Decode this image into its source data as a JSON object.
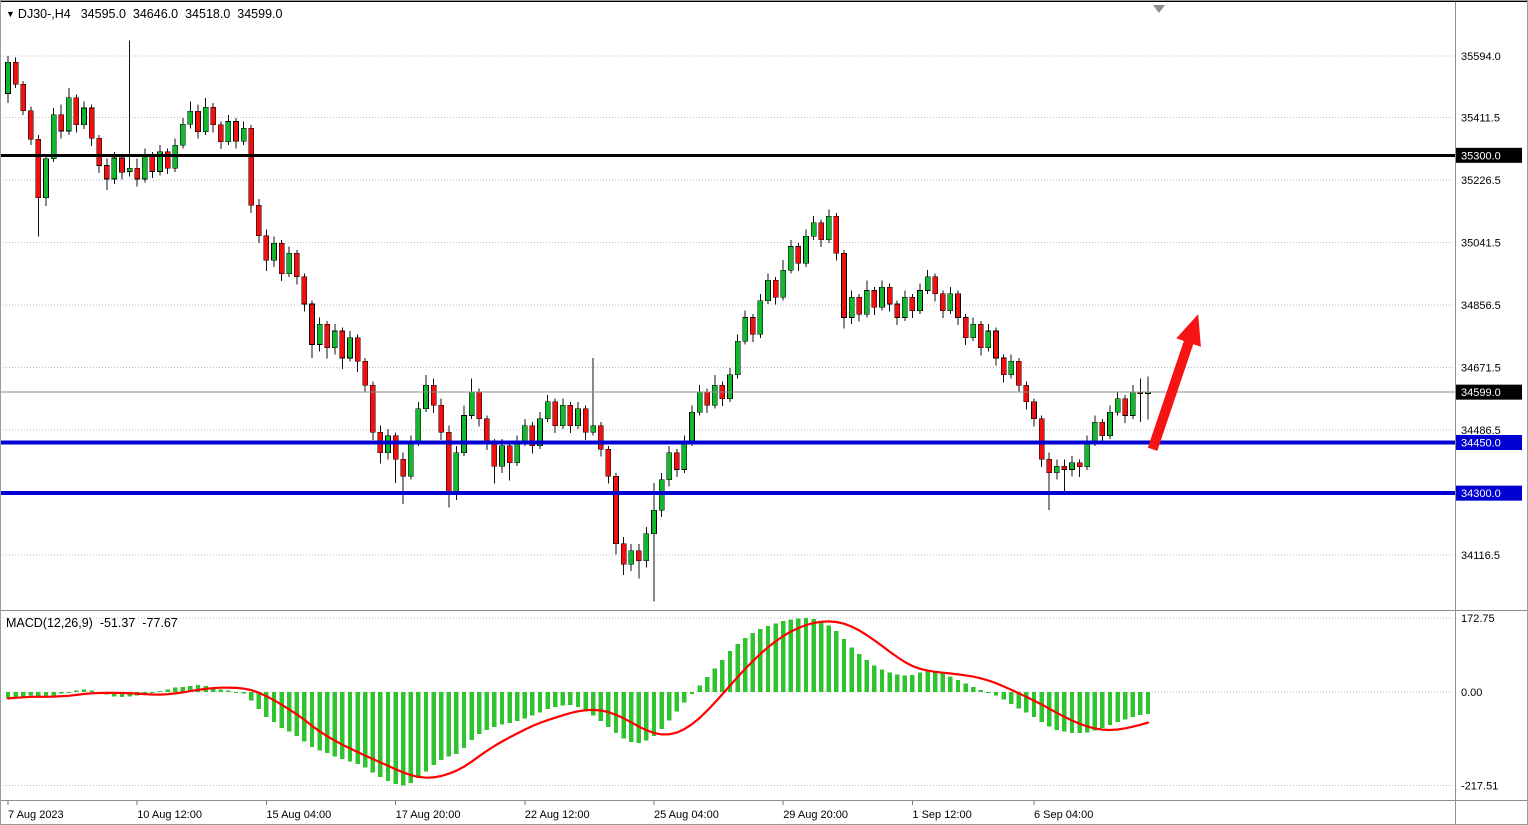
{
  "header": {
    "symbol_period": "DJ30-,H4",
    "open": "34595.0",
    "high": "34646.0",
    "low": "34518.0",
    "close": "34599.0"
  },
  "macd_header": {
    "label": "MACD(12,26,9)",
    "macd_value": "-51.37",
    "signal_value": "-77.67"
  },
  "icons": {
    "dropdown": "▼"
  },
  "colors": {
    "bull": "#11b72f",
    "bear": "#ef1010",
    "wick": "#111111",
    "macd_histogram": "#2fc32f",
    "macd_signal": "#ff0000",
    "support": "#0000d0",
    "resistance": "#000000",
    "current_price_line": "#8a8a8a",
    "grid": "#bdbdbd",
    "badge_text": "#ffffff",
    "arrow": "#f51413",
    "separator": "#8f8f8f"
  },
  "chart_data": {
    "type": "candlestick",
    "symbol": "DJ30-",
    "timeframe": "H4",
    "title": "DJ30-,H4 34595.0 34646.0 34518.0 34599.0",
    "last_ohlc": {
      "open": 34595.0,
      "high": 34646.0,
      "low": 34518.0,
      "close": 34599.0
    },
    "price_axis_ticks": [
      {
        "label": "35594.0",
        "value": 35594.0
      },
      {
        "label": "35411.5",
        "value": 35411.5
      },
      {
        "label": "35226.5",
        "value": 35226.5
      },
      {
        "label": "35041.5",
        "value": 35041.5
      },
      {
        "label": "34856.5",
        "value": 34856.5
      },
      {
        "label": "34671.5",
        "value": 34671.5
      },
      {
        "label": "34486.5",
        "value": 34486.5
      },
      {
        "label": "34116.5",
        "value": 34116.5
      }
    ],
    "time_axis_labels": [
      {
        "label": "7 Aug 2023",
        "index": 0
      },
      {
        "label": "10 Aug 12:00",
        "index": 17
      },
      {
        "label": "15 Aug 04:00",
        "index": 34
      },
      {
        "label": "17 Aug 20:00",
        "index": 51
      },
      {
        "label": "22 Aug 12:00",
        "index": 68
      },
      {
        "label": "25 Aug 04:00",
        "index": 85
      },
      {
        "label": "29 Aug 20:00",
        "index": 102
      },
      {
        "label": "1 Sep 12:00",
        "index": 119
      },
      {
        "label": "6 Sep 04:00",
        "index": 135
      }
    ],
    "macd_axis_ticks": [
      {
        "label": "172.75",
        "value": 172.75
      },
      {
        "label": "0.00",
        "value": 0.0
      },
      {
        "label": "-217.51",
        "value": -217.51
      }
    ],
    "horizontal_lines": [
      {
        "label": "35300.0",
        "price": 35300.0,
        "role": "resistance",
        "thickness": 3
      },
      {
        "label": "34450.0",
        "price": 34450.0,
        "role": "support",
        "thickness": 4
      },
      {
        "label": "34300.0",
        "price": 34300.0,
        "role": "support",
        "thickness": 4
      }
    ],
    "current_price": {
      "label": "34599.0",
      "price": 34599.0
    },
    "arrow_annotation": {
      "from_index": 150.6,
      "from_price": 34430,
      "to_index": 156.6,
      "to_price": 34830
    },
    "macd": {
      "label": "MACD(12,26,9)",
      "macd_value": -51.37,
      "signal_value": -77.67,
      "signal_period": 9,
      "histogram": [
        -15,
        -12,
        -10,
        -8,
        -10,
        -12,
        -8,
        -4,
        0,
        4,
        6,
        4,
        -2,
        -6,
        -10,
        -12,
        -10,
        -8,
        -6,
        -2,
        2,
        6,
        10,
        12,
        14,
        16,
        14,
        10,
        6,
        4,
        0,
        -4,
        -20,
        -40,
        -58,
        -70,
        -84,
        -92,
        -102,
        -115,
        -128,
        -136,
        -142,
        -150,
        -156,
        -162,
        -168,
        -176,
        -188,
        -198,
        -207,
        -214,
        -217.5,
        -212,
        -200,
        -185,
        -170,
        -158,
        -150,
        -144,
        -130,
        -112,
        -98,
        -88,
        -82,
        -76,
        -72,
        -68,
        -62,
        -55,
        -48,
        -40,
        -35,
        -32,
        -30,
        -35,
        -45,
        -55,
        -68,
        -82,
        -96,
        -108,
        -116,
        -119,
        -113,
        -102,
        -86,
        -66,
        -45,
        -24,
        -5,
        15,
        35,
        55,
        75,
        95,
        112,
        126,
        138,
        147,
        154,
        160,
        165,
        169,
        171,
        172.75,
        170,
        164,
        155,
        142,
        124,
        104,
        88,
        74,
        62,
        53,
        46,
        41,
        38,
        40,
        45,
        50,
        48,
        43,
        36,
        28,
        20,
        12,
        5,
        0,
        -8,
        -18,
        -28,
        -38,
        -48,
        -58,
        -70,
        -80,
        -88,
        -92,
        -95,
        -96,
        -94,
        -90,
        -84,
        -77,
        -70,
        -64,
        -58,
        -54,
        -51.37
      ]
    },
    "candles": [
      [
        35483,
        35594,
        35455,
        35575
      ],
      [
        35575,
        35590,
        35500,
        35510
      ],
      [
        35510,
        35520,
        35420,
        35432
      ],
      [
        35432,
        35445,
        35330,
        35348
      ],
      [
        35348,
        35360,
        35060,
        35175
      ],
      [
        35175,
        35300,
        35150,
        35290
      ],
      [
        35290,
        35440,
        35280,
        35420
      ],
      [
        35420,
        35450,
        35350,
        35372
      ],
      [
        35372,
        35500,
        35360,
        35470
      ],
      [
        35470,
        35480,
        35368,
        35390
      ],
      [
        35390,
        35460,
        35378,
        35440
      ],
      [
        35440,
        35450,
        35328,
        35350
      ],
      [
        35350,
        35360,
        35248,
        35270
      ],
      [
        35270,
        35290,
        35198,
        35230
      ],
      [
        35230,
        35310,
        35215,
        35292
      ],
      [
        35292,
        35302,
        35228,
        35250
      ],
      [
        35252,
        35640,
        35238,
        35262
      ],
      [
        35262,
        35290,
        35208,
        35230
      ],
      [
        35230,
        35320,
        35220,
        35300
      ],
      [
        35300,
        35310,
        35233,
        35252
      ],
      [
        35252,
        35330,
        35240,
        35310
      ],
      [
        35310,
        35320,
        35244,
        35262
      ],
      [
        35262,
        35350,
        35250,
        35330
      ],
      [
        35330,
        35410,
        35320,
        35392
      ],
      [
        35392,
        35460,
        35380,
        35430
      ],
      [
        35430,
        35450,
        35350,
        35370
      ],
      [
        35370,
        35470,
        35360,
        35442
      ],
      [
        35442,
        35455,
        35368,
        35390
      ],
      [
        35390,
        35400,
        35318,
        35340
      ],
      [
        35340,
        35420,
        35330,
        35400
      ],
      [
        35400,
        35410,
        35320,
        35342
      ],
      [
        35342,
        35400,
        35330,
        35380
      ],
      [
        35380,
        35390,
        35130,
        35152
      ],
      [
        35152,
        35170,
        35040,
        35062
      ],
      [
        35062,
        35080,
        34958,
        34990
      ],
      [
        34990,
        35060,
        34970,
        35040
      ],
      [
        35040,
        35050,
        34928,
        34950
      ],
      [
        34950,
        35030,
        34940,
        35010
      ],
      [
        35010,
        35020,
        34918,
        34940
      ],
      [
        34940,
        34950,
        34838,
        34860
      ],
      [
        34860,
        34870,
        34700,
        34740
      ],
      [
        34740,
        34820,
        34720,
        34800
      ],
      [
        34800,
        34810,
        34698,
        34730
      ],
      [
        34730,
        34800,
        34710,
        34780
      ],
      [
        34780,
        34790,
        34668,
        34700
      ],
      [
        34700,
        34780,
        34690,
        34760
      ],
      [
        34760,
        34770,
        34658,
        34690
      ],
      [
        34690,
        34700,
        34598,
        34620
      ],
      [
        34620,
        34630,
        34458,
        34480
      ],
      [
        34480,
        34500,
        34388,
        34420
      ],
      [
        34420,
        34490,
        34400,
        34470
      ],
      [
        34470,
        34480,
        34330,
        34400
      ],
      [
        34400,
        34420,
        34268,
        34350
      ],
      [
        34350,
        34470,
        34340,
        34450
      ],
      [
        34450,
        34570,
        34440,
        34550
      ],
      [
        34550,
        34650,
        34540,
        34620
      ],
      [
        34620,
        34640,
        34538,
        34560
      ],
      [
        34560,
        34580,
        34458,
        34480
      ],
      [
        34480,
        34500,
        34258,
        34300
      ],
      [
        34300,
        34440,
        34280,
        34420
      ],
      [
        34420,
        34560,
        34410,
        34530
      ],
      [
        34530,
        34640,
        34520,
        34600
      ],
      [
        34600,
        34610,
        34498,
        34520
      ],
      [
        34520,
        34530,
        34428,
        34450
      ],
      [
        34450,
        34460,
        34328,
        34380
      ],
      [
        34380,
        34460,
        34360,
        34440
      ],
      [
        34440,
        34450,
        34338,
        34390
      ],
      [
        34390,
        34470,
        34380,
        34450
      ],
      [
        34450,
        34520,
        34440,
        34500
      ],
      [
        34500,
        34510,
        34418,
        34440
      ],
      [
        34440,
        34540,
        34430,
        34520
      ],
      [
        34520,
        34590,
        34510,
        34570
      ],
      [
        34570,
        34580,
        34478,
        34500
      ],
      [
        34500,
        34580,
        34490,
        34560
      ],
      [
        34560,
        34570,
        34478,
        34500
      ],
      [
        34500,
        34570,
        34490,
        34550
      ],
      [
        34550,
        34560,
        34458,
        34480
      ],
      [
        34480,
        34700,
        34470,
        34500
      ],
      [
        34500,
        34510,
        34408,
        34430
      ],
      [
        34430,
        34440,
        34328,
        34350
      ],
      [
        34350,
        34360,
        34118,
        34150
      ],
      [
        34150,
        34170,
        34058,
        34090
      ],
      [
        34090,
        34150,
        34070,
        34130
      ],
      [
        34130,
        34150,
        34048,
        34100
      ],
      [
        34100,
        34200,
        34080,
        34180
      ],
      [
        34180,
        34330,
        33980,
        34250
      ],
      [
        34250,
        34360,
        34230,
        34340
      ],
      [
        34340,
        34440,
        34320,
        34420
      ],
      [
        34420,
        34430,
        34348,
        34370
      ],
      [
        34370,
        34470,
        34360,
        34450
      ],
      [
        34450,
        34560,
        34440,
        34540
      ],
      [
        34540,
        34620,
        34530,
        34600
      ],
      [
        34600,
        34610,
        34538,
        34560
      ],
      [
        34560,
        34650,
        34550,
        34620
      ],
      [
        34620,
        34630,
        34558,
        34580
      ],
      [
        34580,
        34670,
        34570,
        34650
      ],
      [
        34650,
        34770,
        34640,
        34750
      ],
      [
        34750,
        34840,
        34740,
        34820
      ],
      [
        34820,
        34830,
        34748,
        34770
      ],
      [
        34770,
        34890,
        34760,
        34870
      ],
      [
        34870,
        34950,
        34860,
        34930
      ],
      [
        34930,
        34940,
        34858,
        34880
      ],
      [
        34880,
        34990,
        34870,
        34960
      ],
      [
        34960,
        35050,
        34950,
        35030
      ],
      [
        35030,
        35040,
        34958,
        34980
      ],
      [
        34980,
        35080,
        34970,
        35060
      ],
      [
        35060,
        35120,
        35050,
        35100
      ],
      [
        35100,
        35110,
        35028,
        35050
      ],
      [
        35050,
        35140,
        35040,
        35120
      ],
      [
        35120,
        35130,
        34988,
        35010
      ],
      [
        35010,
        35020,
        34788,
        34820
      ],
      [
        34820,
        34900,
        34800,
        34880
      ],
      [
        34880,
        34890,
        34808,
        34830
      ],
      [
        34830,
        34930,
        34820,
        34900
      ],
      [
        34900,
        34910,
        34828,
        34850
      ],
      [
        34850,
        34930,
        34840,
        34910
      ],
      [
        34910,
        34920,
        34838,
        34860
      ],
      [
        34860,
        34870,
        34798,
        34820
      ],
      [
        34820,
        34900,
        34810,
        34880
      ],
      [
        34880,
        34890,
        34818,
        34840
      ],
      [
        34840,
        34920,
        34830,
        34900
      ],
      [
        34900,
        34960,
        34890,
        34940
      ],
      [
        34940,
        34950,
        34868,
        34890
      ],
      [
        34890,
        34900,
        34818,
        34840
      ],
      [
        34840,
        34910,
        34830,
        34890
      ],
      [
        34890,
        34900,
        34798,
        34820
      ],
      [
        34820,
        34830,
        34738,
        34760
      ],
      [
        34760,
        34820,
        34750,
        34800
      ],
      [
        34800,
        34810,
        34708,
        34730
      ],
      [
        34730,
        34800,
        34720,
        34780
      ],
      [
        34780,
        34790,
        34678,
        34700
      ],
      [
        34700,
        34710,
        34628,
        34650
      ],
      [
        34650,
        34710,
        34640,
        34690
      ],
      [
        34690,
        34700,
        34598,
        34620
      ],
      [
        34620,
        34630,
        34548,
        34570
      ],
      [
        34570,
        34580,
        34498,
        34520
      ],
      [
        34520,
        34530,
        34378,
        34400
      ],
      [
        34400,
        34420,
        34250,
        34360
      ],
      [
        34360,
        34400,
        34340,
        34380
      ],
      [
        34380,
        34400,
        34300,
        34370
      ],
      [
        34370,
        34410,
        34350,
        34390
      ],
      [
        34390,
        34400,
        34348,
        34378
      ],
      [
        34378,
        34470,
        34368,
        34450
      ],
      [
        34450,
        34530,
        34440,
        34510
      ],
      [
        34510,
        34520,
        34448,
        34470
      ],
      [
        34470,
        34560,
        34460,
        34540
      ],
      [
        34540,
        34600,
        34530,
        34580
      ],
      [
        34580,
        34590,
        34508,
        34530
      ],
      [
        34530,
        34620,
        34520,
        34600
      ],
      [
        34600,
        34640,
        34510,
        34595
      ],
      [
        34595,
        34646,
        34518,
        34599
      ]
    ]
  }
}
